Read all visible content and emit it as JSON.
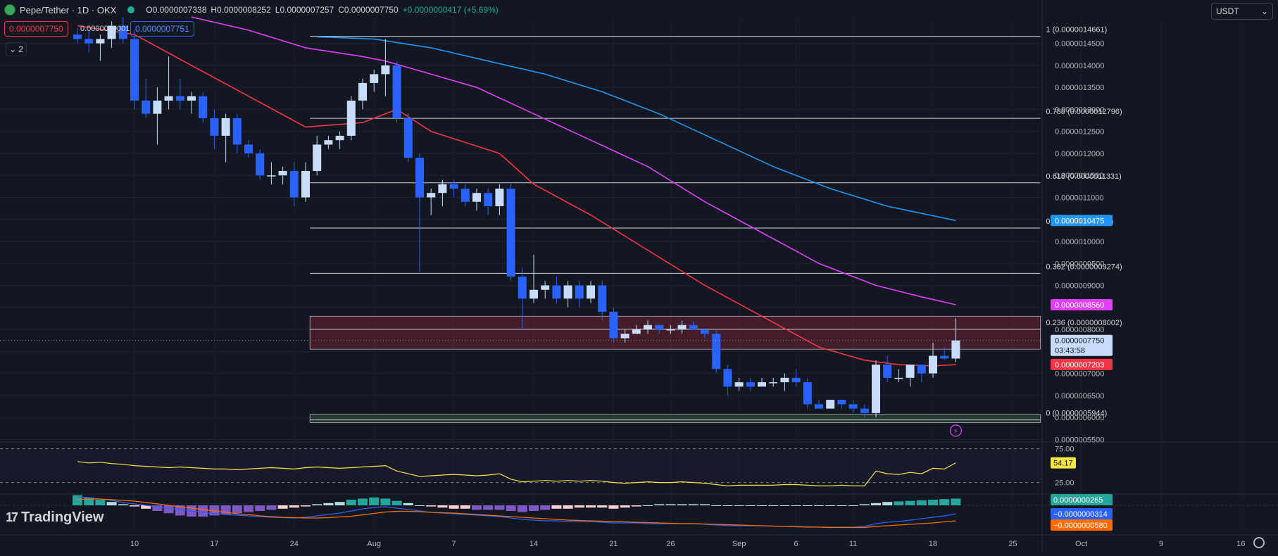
{
  "header": {
    "symbol": "Pepe/Tether · 1D · OKX",
    "open": "O0.0000007338",
    "high": "H0.0000008252",
    "low": "L0.0000007257",
    "close": "C0.0000007750",
    "change": "+0.0000000417 (+5.69%)"
  },
  "order": {
    "sell_price": "0.0000007750",
    "spread": "0.0000000001",
    "buy_price": "0.0000007751"
  },
  "indicators_collapsed": "2",
  "currency": "USDT",
  "branding": "TradingView",
  "colors": {
    "background": "#131722",
    "candle_up": "#c7dcfb",
    "candle_down": "#2962ff",
    "ema_short": "#f23645",
    "ema_mid": "#e040fb",
    "ema_long": "#2196f3",
    "rsi": "#f5e642",
    "macd_line": "#2962ff",
    "signal_line": "#ff6d00"
  },
  "chart_data": [
    {
      "type": "candlestick",
      "title": "Pepe/Tether · 1D · OKX",
      "x_ticks": [
        "10",
        "17",
        "24",
        "Aug",
        "7",
        "14",
        "21",
        "26",
        "Sep",
        "6",
        "11",
        "18",
        "25",
        "Oct",
        "9",
        "16"
      ],
      "y_ticks": [
        "0.0000014500",
        "0.0000014000",
        "0.0000013500",
        "0.0000013000",
        "0.0000012500",
        "0.0000012000",
        "0.0000011500",
        "0.0000011000",
        "0.0000010500",
        "0.0000010000",
        "0.0000009500",
        "0.0000009000",
        "0.0000008500",
        "0.0000008000",
        "0.0000007500",
        "0.0000007000",
        "0.0000006500",
        "0.0000006000",
        "0.0000005500"
      ],
      "ylim": [
        5.49e-07,
        1.507e-06
      ],
      "candles": [
        [
          1.47e-06,
          1.485e-06,
          1.45e-06,
          1.46e-06
        ],
        [
          1.46e-06,
          1.48e-06,
          1.43e-06,
          1.45e-06
        ],
        [
          1.45e-06,
          1.47e-06,
          1.41e-06,
          1.46e-06
        ],
        [
          1.46e-06,
          1.5e-06,
          1.44e-06,
          1.49e-06
        ],
        [
          1.49e-06,
          1.51e-06,
          1.45e-06,
          1.46e-06
        ],
        [
          1.46e-06,
          1.48e-06,
          1.3e-06,
          1.32e-06
        ],
        [
          1.32e-06,
          1.37e-06,
          1.28e-06,
          1.29e-06
        ],
        [
          1.29e-06,
          1.35e-06,
          1.22e-06,
          1.32e-06
        ],
        [
          1.32e-06,
          1.42e-06,
          1.3e-06,
          1.33e-06
        ],
        [
          1.33e-06,
          1.37e-06,
          1.3e-06,
          1.32e-06
        ],
        [
          1.32e-06,
          1.34e-06,
          1.29e-06,
          1.33e-06
        ],
        [
          1.33e-06,
          1.34e-06,
          1.27e-06,
          1.28e-06
        ],
        [
          1.28e-06,
          1.3e-06,
          1.21e-06,
          1.24e-06
        ],
        [
          1.24e-06,
          1.29e-06,
          1.18e-06,
          1.28e-06
        ],
        [
          1.28e-06,
          1.29e-06,
          1.2e-06,
          1.22e-06
        ],
        [
          1.22e-06,
          1.23e-06,
          1.19e-06,
          1.2e-06
        ],
        [
          1.2e-06,
          1.21e-06,
          1.14e-06,
          1.15e-06
        ],
        [
          1.15e-06,
          1.18e-06,
          1.13e-06,
          1.15e-06
        ],
        [
          1.15e-06,
          1.17e-06,
          1.13e-06,
          1.16e-06
        ],
        [
          1.16e-06,
          1.18e-06,
          1.08e-06,
          1.1e-06
        ],
        [
          1.1e-06,
          1.18e-06,
          1.09e-06,
          1.16e-06
        ],
        [
          1.16e-06,
          1.24e-06,
          1.15e-06,
          1.22e-06
        ],
        [
          1.22e-06,
          1.24e-06,
          1.21e-06,
          1.23e-06
        ],
        [
          1.23e-06,
          1.25e-06,
          1.21e-06,
          1.24e-06
        ],
        [
          1.24e-06,
          1.33e-06,
          1.23e-06,
          1.32e-06
        ],
        [
          1.32e-06,
          1.37e-06,
          1.3e-06,
          1.36e-06
        ],
        [
          1.36e-06,
          1.39e-06,
          1.34e-06,
          1.38e-06
        ],
        [
          1.38e-06,
          1.46e-06,
          1.33e-06,
          1.4e-06
        ],
        [
          1.4e-06,
          1.41e-06,
          1.27e-06,
          1.28e-06
        ],
        [
          1.28e-06,
          1.29e-06,
          1.18e-06,
          1.19e-06
        ],
        [
          1.19e-06,
          1.2e-06,
          9.3e-07,
          1.1e-06
        ],
        [
          1.1e-06,
          1.12e-06,
          1.06e-06,
          1.11e-06
        ],
        [
          1.11e-06,
          1.14e-06,
          1.08e-06,
          1.13e-06
        ],
        [
          1.13e-06,
          1.14e-06,
          1.1e-06,
          1.12e-06
        ],
        [
          1.12e-06,
          1.13e-06,
          1.08e-06,
          1.09e-06
        ],
        [
          1.09e-06,
          1.12e-06,
          1.07e-06,
          1.11e-06
        ],
        [
          1.11e-06,
          1.12e-06,
          1.06e-06,
          1.08e-06
        ],
        [
          1.08e-06,
          1.13e-06,
          1.06e-06,
          1.12e-06
        ],
        [
          1.12e-06,
          1.13e-06,
          9.1e-07,
          9.2e-07
        ],
        [
          9.2e-07,
          9.4e-07,
          8e-07,
          8.7e-07
        ],
        [
          8.7e-07,
          9.7e-07,
          8.6e-07,
          8.9e-07
        ],
        [
          8.9e-07,
          9.1e-07,
          8.7e-07,
          9e-07
        ],
        [
          9e-07,
          9.2e-07,
          8.6e-07,
          8.7e-07
        ],
        [
          8.7e-07,
          9.1e-07,
          8.5e-07,
          9e-07
        ],
        [
          9e-07,
          9.1e-07,
          8.5e-07,
          8.7e-07
        ],
        [
          8.7e-07,
          9.1e-07,
          8.6e-07,
          9e-07
        ],
        [
          9e-07,
          9.1e-07,
          8.2e-07,
          8.4e-07
        ],
        [
          8.4e-07,
          8.5e-07,
          7.7e-07,
          7.8e-07
        ],
        [
          7.8e-07,
          8e-07,
          7.7e-07,
          7.9e-07
        ],
        [
          7.9e-07,
          8.1e-07,
          7.9e-07,
          8e-07
        ],
        [
          8e-07,
          8.2e-07,
          7.9e-07,
          8.1e-07
        ],
        [
          8.1e-07,
          8.1e-07,
          7.9e-07,
          8e-07
        ],
        [
          8e-07,
          8.1e-07,
          7.9e-07,
          8e-07
        ],
        [
          8e-07,
          8.2e-07,
          7.9e-07,
          8.1e-07
        ],
        [
          8.1e-07,
          8.2e-07,
          8e-07,
          8e-07
        ],
        [
          8e-07,
          8e-07,
          7.8e-07,
          7.9e-07
        ],
        [
          7.9e-07,
          8e-07,
          7e-07,
          7.1e-07
        ],
        [
          7.1e-07,
          7.2e-07,
          6.5e-07,
          6.7e-07
        ],
        [
          6.7e-07,
          6.9e-07,
          6.6e-07,
          6.8e-07
        ],
        [
          6.8e-07,
          6.9e-07,
          6.6e-07,
          6.7e-07
        ],
        [
          6.7e-07,
          6.9e-07,
          6.7e-07,
          6.8e-07
        ],
        [
          6.8e-07,
          6.9e-07,
          6.7e-07,
          6.8e-07
        ],
        [
          6.8e-07,
          7e-07,
          6.6e-07,
          6.9e-07
        ],
        [
          6.9e-07,
          7.1e-07,
          6.7e-07,
          6.8e-07
        ],
        [
          6.8e-07,
          6.9e-07,
          6.2e-07,
          6.3e-07
        ],
        [
          6.3e-07,
          6.4e-07,
          6.2e-07,
          6.2e-07
        ],
        [
          6.2e-07,
          6.4e-07,
          6.2e-07,
          6.4e-07
        ],
        [
          6.4e-07,
          6.4e-07,
          6.2e-07,
          6.3e-07
        ],
        [
          6.3e-07,
          6.4e-07,
          6.1e-07,
          6.2e-07
        ],
        [
          6.2e-07,
          6.3e-07,
          6e-07,
          6.1e-07
        ],
        [
          6.1e-07,
          7.3e-07,
          6e-07,
          7.2e-07
        ],
        [
          7.2e-07,
          7.4e-07,
          6.8e-07,
          6.9e-07
        ],
        [
          6.9e-07,
          7.1e-07,
          6.8e-07,
          6.9e-07
        ],
        [
          6.9e-07,
          7.2e-07,
          6.7e-07,
          7.2e-07
        ],
        [
          7.2e-07,
          7.2e-07,
          6.8e-07,
          7e-07
        ],
        [
          7e-07,
          7.7e-07,
          6.9e-07,
          7.4e-07
        ],
        [
          7.4e-07,
          7.6e-07,
          7.3e-07,
          7.34e-07
        ],
        [
          7.338e-07,
          8.252e-07,
          7.257e-07,
          7.75e-07
        ]
      ],
      "series": [
        {
          "name": "EMA short",
          "color": "#f23645",
          "points": [
            [
              0,
              1.49e-06
            ],
            [
              5,
              1.47e-06
            ],
            [
              10,
              1.4e-06
            ],
            [
              15,
              1.33e-06
            ],
            [
              20,
              1.26e-06
            ],
            [
              25,
              1.27e-06
            ],
            [
              28,
              1.3e-06
            ],
            [
              31,
              1.25e-06
            ],
            [
              37,
              1.2e-06
            ],
            [
              40,
              1.13e-06
            ],
            [
              45,
              1.06e-06
            ],
            [
              50,
              9.8e-07
            ],
            [
              55,
              9e-07
            ],
            [
              60,
              8.3e-07
            ],
            [
              65,
              7.6e-07
            ],
            [
              69,
              7.3e-07
            ],
            [
              72,
              7.2e-07
            ],
            [
              75,
              7.17e-07
            ],
            [
              77,
              7.2e-07
            ]
          ]
        },
        {
          "name": "EMA mid",
          "color": "#e040fb",
          "points": [
            [
              10,
              1.51e-06
            ],
            [
              15,
              1.48e-06
            ],
            [
              20,
              1.44e-06
            ],
            [
              25,
              1.42e-06
            ],
            [
              27,
              1.41e-06
            ],
            [
              31,
              1.38e-06
            ],
            [
              35,
              1.35e-06
            ],
            [
              40,
              1.29e-06
            ],
            [
              45,
              1.23e-06
            ],
            [
              50,
              1.17e-06
            ],
            [
              55,
              1.09e-06
            ],
            [
              60,
              1.02e-06
            ],
            [
              65,
              9.5e-07
            ],
            [
              70,
              9e-07
            ],
            [
              74,
              8.74e-07
            ],
            [
              77,
              8.56e-07
            ]
          ]
        },
        {
          "name": "EMA long",
          "color": "#2196f3",
          "points": [
            [
              21,
              1.465e-06
            ],
            [
              26,
              1.46e-06
            ],
            [
              31,
              1.44e-06
            ],
            [
              36,
              1.41e-06
            ],
            [
              41,
              1.38e-06
            ],
            [
              46,
              1.34e-06
            ],
            [
              51,
              1.29e-06
            ],
            [
              56,
              1.23e-06
            ],
            [
              61,
              1.17e-06
            ],
            [
              66,
              1.12e-06
            ],
            [
              71,
              1.08e-06
            ],
            [
              77,
              1.0475e-06
            ]
          ]
        }
      ],
      "fib_levels": [
        {
          "label": "1 (0.0000014661)",
          "value": 1.4661e-06
        },
        {
          "label": "0.786 (0.0000012796)",
          "value": 1.2796e-06
        },
        {
          "label": "0.618 (0.0000011331)",
          "value": 1.1331e-06
        },
        {
          "label": "0.5 (0.0000010303)",
          "value": 1.0303e-06
        },
        {
          "label": "0.382 (0.0000009274)",
          "value": 9.274e-07
        },
        {
          "label": "0.236 (0.0000008002)",
          "value": 8.002e-07
        },
        {
          "label": "0 (0.0000005944)",
          "value": 5.944e-07
        }
      ],
      "fib_range_bars": [
        21,
        77
      ],
      "zones": [
        {
          "kind": "resistance",
          "low": 7.55e-07,
          "high": 8.3e-07
        },
        {
          "kind": "support",
          "low": 5.88e-07,
          "high": 6.07e-07
        }
      ],
      "price_labels": [
        {
          "text": "0.0000010475",
          "value": 1.0475e-06,
          "color": "#2196f3"
        },
        {
          "text": "0.0000008560",
          "value": 8.56e-07,
          "color": "#e040fb"
        },
        {
          "text": "0.0000007750",
          "value": 7.75e-07,
          "color": "#c7dcfb",
          "countdown": "03:43:58"
        },
        {
          "text": "0.0000007203",
          "value": 7.203e-07,
          "color": "#f23645"
        }
      ]
    },
    {
      "type": "line",
      "name": "RSI",
      "levels": [
        "75.00",
        "25.00"
      ],
      "ylim": [
        10,
        85
      ],
      "current_label": "54.17",
      "values": [
        56,
        54,
        55,
        53,
        52,
        50,
        49,
        48,
        47,
        48,
        47,
        46,
        45,
        45,
        44,
        45,
        46,
        47,
        46,
        45,
        47,
        48,
        47,
        46,
        47,
        48,
        49,
        50,
        42,
        38,
        34,
        35,
        36,
        37,
        36,
        35,
        36,
        38,
        30,
        26,
        27,
        28,
        27,
        28,
        27,
        28,
        27,
        25,
        24,
        25,
        26,
        25,
        25,
        26,
        25,
        24,
        22,
        20,
        21,
        21,
        21,
        21,
        22,
        22,
        21,
        20,
        20,
        21,
        20,
        20,
        42,
        38,
        37,
        40,
        38,
        46,
        45,
        54.17
      ]
    },
    {
      "type": "bar+line",
      "name": "MACD",
      "labels": [
        "0.0000000265",
        "−0.0000000314",
        "−0.0000000580"
      ],
      "zero": 0,
      "histogram": [
        0.9,
        0.7,
        0.5,
        0.3,
        0.1,
        -0.1,
        -0.3,
        -0.5,
        -0.7,
        -0.9,
        -1.0,
        -1.0,
        -0.9,
        -0.8,
        -0.7,
        -0.6,
        -0.5,
        -0.4,
        -0.3,
        -0.2,
        -0.1,
        0.1,
        0.2,
        0.3,
        0.5,
        0.6,
        0.7,
        0.6,
        0.4,
        0.2,
        0.0,
        -0.1,
        -0.2,
        -0.3,
        -0.3,
        -0.4,
        -0.4,
        -0.4,
        -0.5,
        -0.6,
        -0.5,
        -0.4,
        -0.3,
        -0.3,
        -0.2,
        -0.2,
        -0.2,
        -0.3,
        -0.2,
        -0.1,
        0.0,
        0.1,
        0.1,
        0.1,
        0.1,
        0.1,
        0.0,
        0.0,
        0.0,
        0.0,
        0.0,
        0.0,
        0.0,
        0.0,
        0.0,
        0.0,
        0.0,
        0.0,
        0.0,
        0.1,
        0.2,
        0.3,
        0.35,
        0.4,
        0.45,
        0.5,
        0.55,
        0.6
      ],
      "macd": [
        1.2,
        1.1,
        0.9,
        0.7,
        0.4,
        0.2,
        0.0,
        -0.2,
        -0.4,
        -0.6,
        -0.8,
        -1.0,
        -1.2,
        -1.3,
        -1.4,
        -1.5,
        -1.6,
        -1.7,
        -1.75,
        -1.8,
        -1.7,
        -1.5,
        -1.3,
        -1.1,
        -0.8,
        -0.5,
        -0.3,
        -0.2,
        -0.4,
        -0.6,
        -0.8,
        -1.0,
        -1.1,
        -1.2,
        -1.3,
        -1.4,
        -1.5,
        -1.6,
        -1.8,
        -2.0,
        -2.1,
        -2.2,
        -2.2,
        -2.3,
        -2.3,
        -2.3,
        -2.4,
        -2.5,
        -2.5,
        -2.5,
        -2.6,
        -2.6,
        -2.6,
        -2.6,
        -2.6,
        -2.7,
        -2.8,
        -2.9,
        -2.9,
        -2.9,
        -2.9,
        -2.95,
        -3.0,
        -3.0,
        -3.05,
        -3.1,
        -3.1,
        -3.1,
        -3.1,
        -3.0,
        -2.6,
        -2.4,
        -2.3,
        -2.1,
        -1.9,
        -1.7,
        -1.5,
        -1.2
      ],
      "signal": [
        0.8,
        0.9,
        0.9,
        0.8,
        0.7,
        0.6,
        0.4,
        0.2,
        0.0,
        -0.2,
        -0.4,
        -0.6,
        -0.8,
        -1.0,
        -1.2,
        -1.3,
        -1.5,
        -1.6,
        -1.7,
        -1.75,
        -1.8,
        -1.8,
        -1.75,
        -1.65,
        -1.55,
        -1.35,
        -1.15,
        -0.95,
        -0.85,
        -0.85,
        -0.9,
        -1.0,
        -1.05,
        -1.1,
        -1.2,
        -1.3,
        -1.4,
        -1.5,
        -1.6,
        -1.7,
        -1.8,
        -1.9,
        -2.0,
        -2.1,
        -2.15,
        -2.2,
        -2.25,
        -2.3,
        -2.35,
        -2.4,
        -2.45,
        -2.5,
        -2.55,
        -2.6,
        -2.6,
        -2.65,
        -2.7,
        -2.75,
        -2.8,
        -2.85,
        -2.9,
        -2.95,
        -3.0,
        -3.05,
        -3.1,
        -3.1,
        -3.15,
        -3.15,
        -3.15,
        -3.15,
        -3.0,
        -2.9,
        -2.8,
        -2.7,
        -2.6,
        -2.5,
        -2.35,
        -2.2
      ]
    }
  ]
}
